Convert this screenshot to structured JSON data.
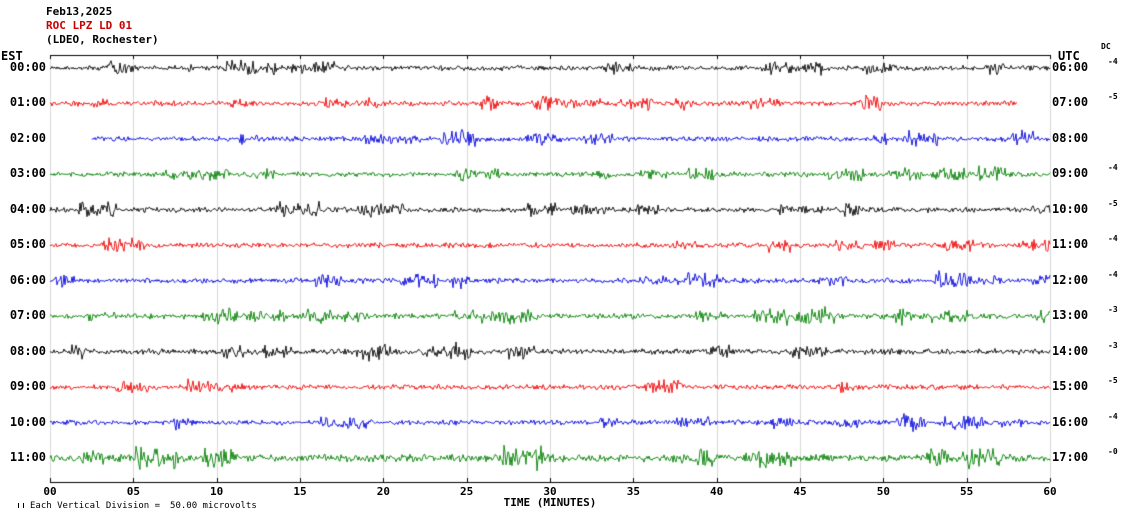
{
  "header": {
    "date": "Feb13,2025",
    "station": "ROC LPZ LD 01",
    "location": "(LDEO, Rochester)",
    "station_color": "#cc0000"
  },
  "axes": {
    "left_label": "EST",
    "right_label": "UTC",
    "dc_label": "DC",
    "x_title": "TIME (MINUTES)",
    "x_ticks": [
      "00",
      "05",
      "10",
      "15",
      "20",
      "25",
      "30",
      "35",
      "40",
      "45",
      "50",
      "55",
      "60"
    ]
  },
  "footer": {
    "text": "Each Vertical Division =",
    "value": "50.00 microvolts"
  },
  "chart_data": {
    "type": "line",
    "title": "ROC LPZ LD 01 helicorder seismogram, Feb13,2025 (LDEO, Rochester)",
    "xlabel": "TIME (MINUTES)",
    "x_range_minutes": [
      0,
      60
    ],
    "minutes_per_row": 60,
    "vertical_division_microvolts": 50.0,
    "colors_cycle": [
      "#000000",
      "#ee0000",
      "#0000dd",
      "#008000"
    ],
    "rows": [
      {
        "est": "00:00",
        "utc": "06:00",
        "dc": "-4",
        "color": "#000000",
        "start_min": 0,
        "end_min": 60,
        "amp": 1.0
      },
      {
        "est": "01:00",
        "utc": "07:00",
        "dc": "-5",
        "color": "#ee0000",
        "start_min": 0,
        "end_min": 58,
        "amp": 1.0
      },
      {
        "est": "02:00",
        "utc": "08:00",
        "dc": "",
        "color": "#0000dd",
        "start_min": 2.5,
        "end_min": 60,
        "amp": 1.0
      },
      {
        "est": "03:00",
        "utc": "09:00",
        "dc": "-4",
        "color": "#008000",
        "start_min": 0,
        "end_min": 60,
        "amp": 1.0
      },
      {
        "est": "04:00",
        "utc": "10:00",
        "dc": "-5",
        "color": "#000000",
        "start_min": 0,
        "end_min": 60,
        "amp": 1.0
      },
      {
        "est": "05:00",
        "utc": "11:00",
        "dc": "-4",
        "color": "#ee0000",
        "start_min": 0,
        "end_min": 60,
        "amp": 1.0
      },
      {
        "est": "06:00",
        "utc": "12:00",
        "dc": "-4",
        "color": "#0000dd",
        "start_min": 0,
        "end_min": 60,
        "amp": 1.0
      },
      {
        "est": "07:00",
        "utc": "13:00",
        "dc": "-3",
        "color": "#008000",
        "start_min": 0,
        "end_min": 60,
        "amp": 1.1
      },
      {
        "est": "08:00",
        "utc": "14:00",
        "dc": "-3",
        "color": "#000000",
        "start_min": 0,
        "end_min": 60,
        "amp": 1.1
      },
      {
        "est": "09:00",
        "utc": "15:00",
        "dc": "-5",
        "color": "#ee0000",
        "start_min": 0,
        "end_min": 60,
        "amp": 1.0
      },
      {
        "est": "10:00",
        "utc": "16:00",
        "dc": "-4",
        "color": "#0000dd",
        "start_min": 0,
        "end_min": 60,
        "amp": 1.0
      },
      {
        "est": "11:00",
        "utc": "17:00",
        "dc": "-0",
        "color": "#008000",
        "start_min": 0,
        "end_min": 60,
        "amp": 1.5
      }
    ]
  }
}
